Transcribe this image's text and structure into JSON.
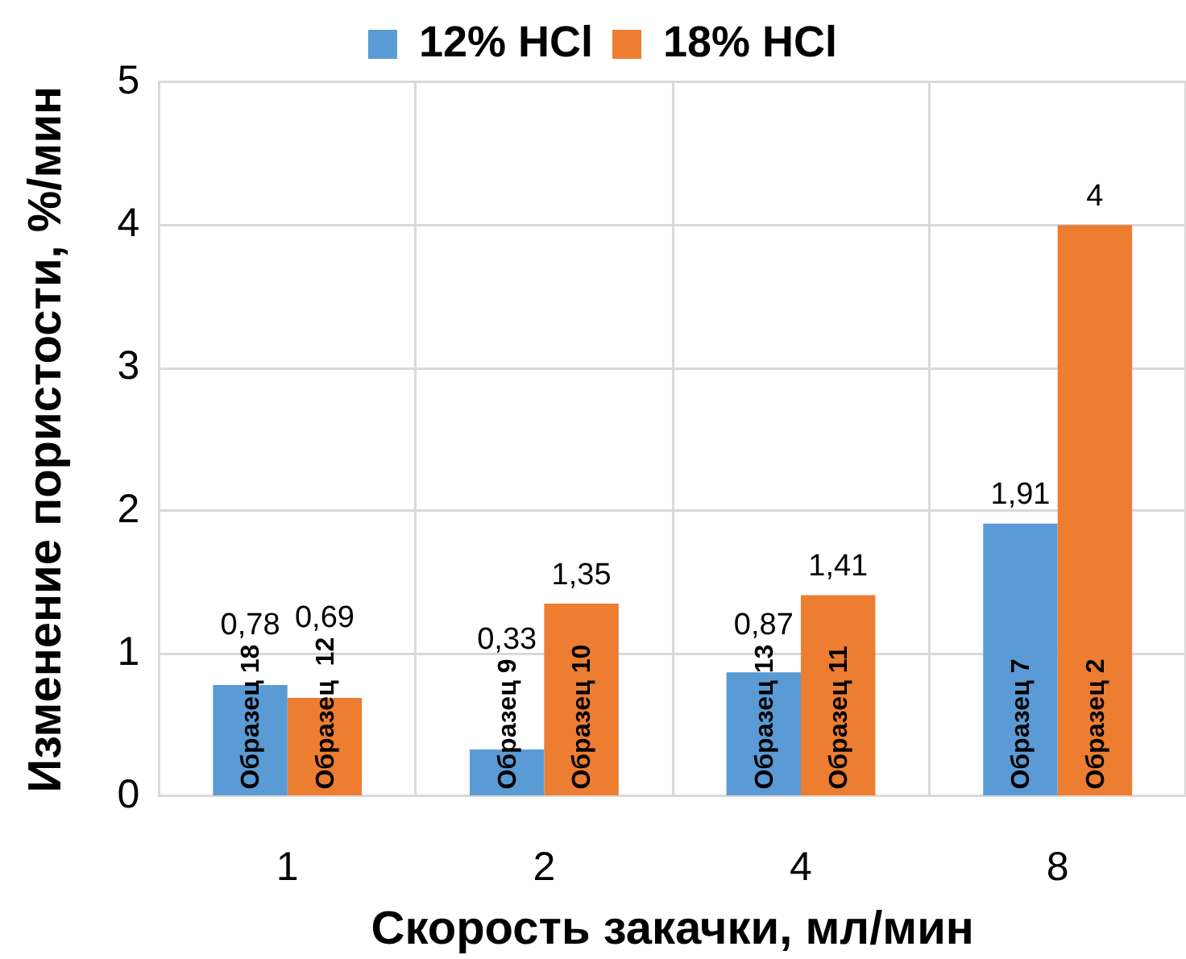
{
  "chart_data": {
    "type": "bar",
    "categories": [
      "1",
      "2",
      "4",
      "8"
    ],
    "series": [
      {
        "name": "12% HCl",
        "color": "#5b9bd5",
        "values": [
          0.78,
          0.33,
          0.87,
          1.91
        ],
        "value_labels": [
          "0,78",
          "0,33",
          "0,87",
          "1,91"
        ]
      },
      {
        "name": "18% HCl",
        "color": "#ed7d31",
        "values": [
          0.69,
          1.35,
          1.41,
          4
        ],
        "value_labels": [
          "0,69",
          "1,35",
          "1,41",
          "4"
        ]
      }
    ],
    "xlabel": "Скорость закачки, мл/мин",
    "ylabel": "Изменение пористости, %/мин",
    "ylim": [
      0,
      5
    ],
    "yticks": [
      0,
      1,
      2,
      3,
      4,
      5
    ],
    "grid": true,
    "legend": "top",
    "annotations": [
      {
        "text": "Образец 18",
        "x": "1",
        "y": 0.05
      },
      {
        "text": "Образец  12",
        "x": "1",
        "y": 0.05
      },
      {
        "text": "Образец 9",
        "x": "2",
        "y": 0.05
      },
      {
        "text": "Образец 10",
        "x": "2",
        "y": 0.05
      },
      {
        "text": "Образец 13",
        "x": "4",
        "y": 0.05
      },
      {
        "text": "Образец 11",
        "x": "4",
        "y": 0.05
      },
      {
        "text": "Образец 7",
        "x": "8",
        "y": 0.05
      },
      {
        "text": "Образец 2",
        "x": "8",
        "y": 0.05
      }
    ]
  }
}
